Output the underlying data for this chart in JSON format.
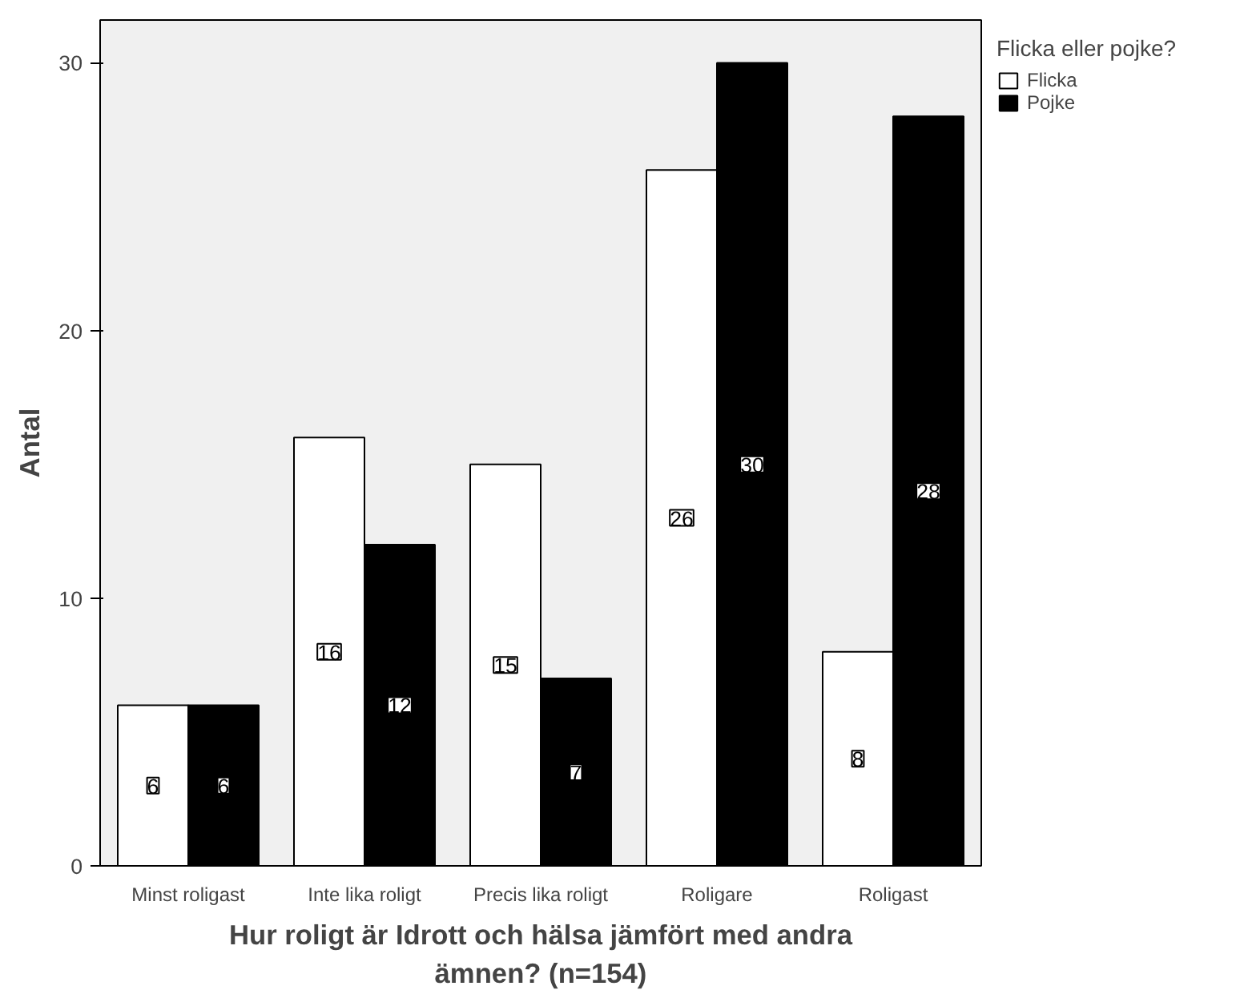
{
  "chart_data": {
    "type": "bar",
    "categories": [
      "Minst roligast",
      "Inte lika roligt",
      "Precis lika roligt",
      "Roligare",
      "Roligast"
    ],
    "series": [
      {
        "name": "Flicka",
        "color": "#ffffff",
        "values": [
          6,
          16,
          15,
          26,
          8
        ]
      },
      {
        "name": "Pojke",
        "color": "#000000",
        "values": [
          6,
          12,
          7,
          30,
          28
        ]
      }
    ],
    "xlabel": "Hur roligt är Idrott och hälsa jämfört med andra\nämnen? (n=154)",
    "ylabel": "Antal",
    "legend_title": "Flicka eller pojke?",
    "legend": "right",
    "ylim": [
      0,
      31.6
    ],
    "yticks": [
      0,
      10,
      20,
      30
    ],
    "data_labels": true,
    "grid": false
  }
}
